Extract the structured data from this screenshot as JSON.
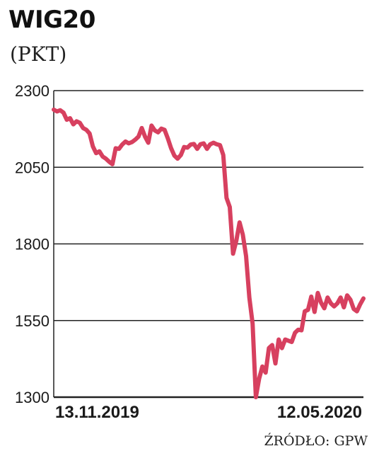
{
  "title": "WIG20",
  "subtitle": "(PKT)",
  "source": "ŹRÓDŁO: GPW",
  "chart_data": {
    "type": "line",
    "title": "WIG20",
    "ylabel": "(PKT)",
    "xlabel": "",
    "ylim": [
      1300,
      2300
    ],
    "yticks": [
      1300,
      1550,
      1800,
      2050,
      2300
    ],
    "xtick_labels": [
      "13.11.2019",
      "12.05.2020"
    ],
    "grid": true,
    "line_color": "#d7405f",
    "series": [
      {
        "values": [
          2238,
          2232,
          2236,
          2228,
          2205,
          2210,
          2190,
          2200,
          2195,
          2178,
          2172,
          2160,
          2118,
          2096,
          2102,
          2085,
          2078,
          2068,
          2060,
          2112,
          2110,
          2124,
          2134,
          2128,
          2132,
          2140,
          2150,
          2178,
          2150,
          2130,
          2186,
          2170,
          2164,
          2176,
          2172,
          2144,
          2112,
          2088,
          2078,
          2090,
          2116,
          2114,
          2124,
          2126,
          2110,
          2125,
          2128,
          2110,
          2125,
          2130,
          2125,
          2122,
          2090,
          1950,
          1920,
          1768,
          1810,
          1870,
          1830,
          1760,
          1625,
          1540,
          1300,
          1360,
          1400,
          1380,
          1460,
          1470,
          1410,
          1488,
          1460,
          1488,
          1484,
          1480,
          1510,
          1520,
          1518,
          1580,
          1585,
          1628,
          1578,
          1640,
          1608,
          1590,
          1625,
          1606,
          1596,
          1606,
          1625,
          1593,
          1632,
          1618,
          1588,
          1580,
          1603,
          1622
        ]
      }
    ]
  }
}
